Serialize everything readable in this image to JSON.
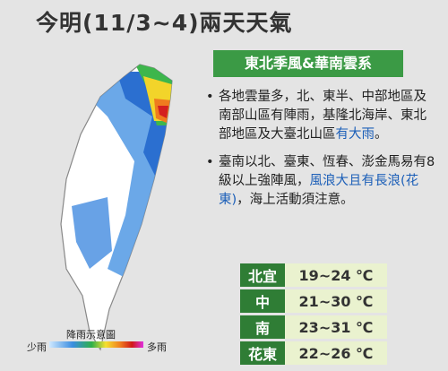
{
  "title": "今明(11/3~4)兩天天氣",
  "banner": "東北季風&華南雲系",
  "bullets": [
    [
      "各地雲量多，北、東半、中部地區及南部山區有陣雨，基隆北海岸、東北部地區及大臺北山區",
      "有大雨",
      "。"
    ],
    [
      "臺南以北、臺東、恆春、澎金馬易有8級以上強陣風，",
      "風浪大且有長浪(花東)",
      "，海上活動須注意。"
    ]
  ],
  "temperatures": [
    [
      "北宜",
      "19~24 ℃"
    ],
    [
      "中",
      "21~30 ℃"
    ],
    [
      "南",
      "23~31 ℃"
    ],
    [
      "花東",
      "22~26 ℃"
    ]
  ],
  "legend": {
    "title": "降雨示意圖",
    "low": "少雨",
    "high": "多雨"
  }
}
